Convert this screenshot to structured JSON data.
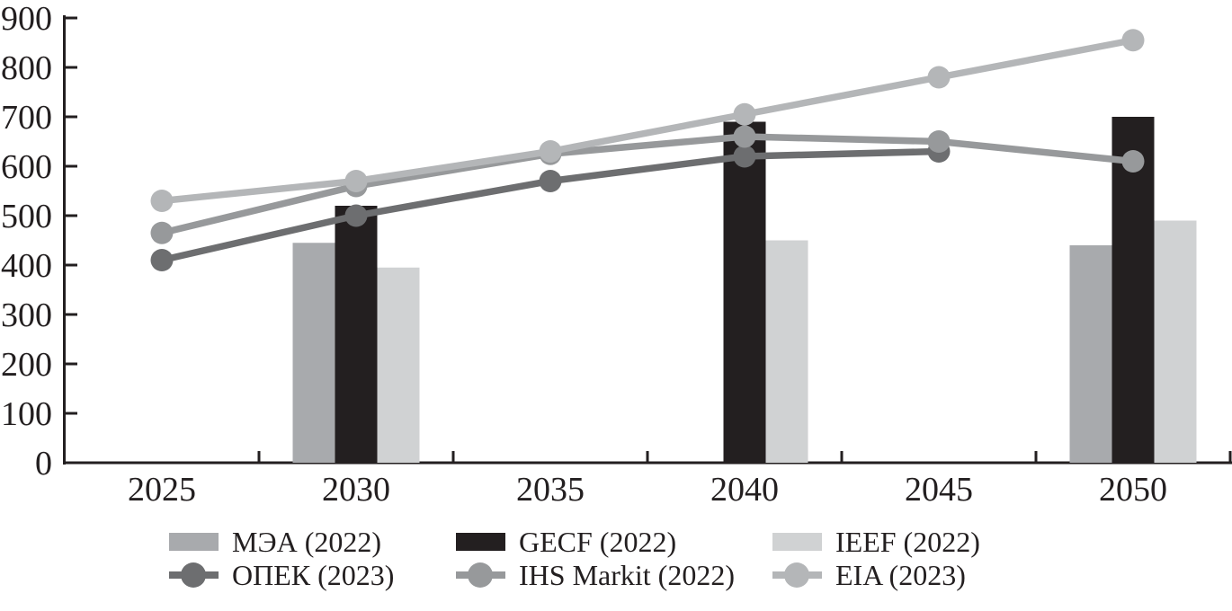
{
  "chart_data": {
    "type": "combo-bar-line",
    "title": "",
    "xlabel": "",
    "ylabel": "",
    "categories": [
      "2025",
      "2030",
      "2035",
      "2040",
      "2045",
      "2050"
    ],
    "y_axis": {
      "min": 0,
      "max": 900,
      "tick_step": 100,
      "ticks": [
        0,
        100,
        200,
        300,
        400,
        500,
        600,
        700,
        800,
        900
      ]
    },
    "grid": false,
    "axis_color": "#231f20",
    "bar_series": [
      {
        "name": "МЭА (2022)",
        "color": "#a8aaad",
        "slot": "left",
        "values": {
          "2030": 445,
          "2050": 440
        }
      },
      {
        "name": "GECF (2022)",
        "color": "#231f20",
        "slot": "center",
        "values": {
          "2030": 520,
          "2040": 690,
          "2050": 700
        }
      },
      {
        "name": "IEEF (2022)",
        "color": "#d0d2d3",
        "slot": "right",
        "values": {
          "2030": 395,
          "2040": 450,
          "2050": 490
        }
      }
    ],
    "line_series": [
      {
        "name": "ОПЕК (2023)",
        "color": "#6d6e70",
        "values": {
          "2025": 410,
          "2030": 500,
          "2035": 570,
          "2040": 620,
          "2045": 630
        }
      },
      {
        "name": "IHS Markit (2022)",
        "color": "#97999b",
        "values": {
          "2025": 465,
          "2030": 560,
          "2035": 625,
          "2040": 660,
          "2045": 650,
          "2050": 610
        }
      },
      {
        "name": "EIA (2023)",
        "color": "#b4b6b8",
        "values": {
          "2025": 530,
          "2030": 570,
          "2035": 630,
          "2040": 705,
          "2045": 780,
          "2050": 855
        }
      }
    ],
    "legend": {
      "position": "bottom",
      "items": [
        {
          "label": "МЭА (2022)",
          "type": "bar",
          "color": "#a8aaad"
        },
        {
          "label": "GECF (2022)",
          "type": "bar",
          "color": "#231f20"
        },
        {
          "label": "IEEF (2022)",
          "type": "bar",
          "color": "#d0d2d3"
        },
        {
          "label": "ОПЕК (2023)",
          "type": "line",
          "color": "#6d6e70"
        },
        {
          "label": "IHS Markit (2022)",
          "type": "line",
          "color": "#97999b"
        },
        {
          "label": "EIA (2023)",
          "type": "line",
          "color": "#b4b6b8"
        }
      ]
    }
  }
}
